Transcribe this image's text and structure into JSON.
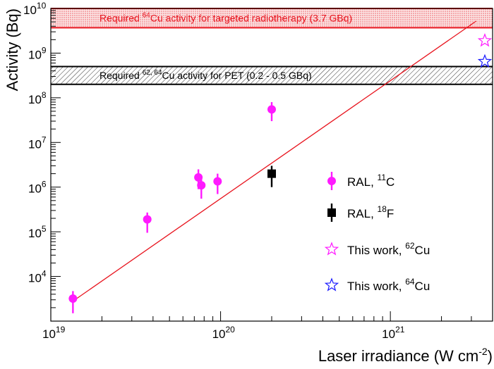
{
  "chart_data": {
    "type": "scatter",
    "xscale": "log",
    "yscale": "log",
    "xlim": [
      1e+19,
      4e+21
    ],
    "ylim": [
      1000,
      10000000000.0
    ],
    "xlabel_main": "Laser irradiance (W cm",
    "xlabel_sup": "-2",
    "xlabel_end": ")",
    "ylabel": "Activity (Bq)",
    "x_ticks": [
      {
        "value": 1e+19,
        "base": "10",
        "exp": "19"
      },
      {
        "value": 1e+20,
        "base": "10",
        "exp": "20"
      },
      {
        "value": 1e+21,
        "base": "10",
        "exp": "21"
      }
    ],
    "y_ticks": [
      {
        "value": 10000.0,
        "base": "10",
        "exp": "4"
      },
      {
        "value": 100000.0,
        "base": "10",
        "exp": "5"
      },
      {
        "value": 1000000.0,
        "base": "10",
        "exp": "6"
      },
      {
        "value": 10000000.0,
        "base": "10",
        "exp": "7"
      },
      {
        "value": 100000000.0,
        "base": "10",
        "exp": "8"
      },
      {
        "value": 1000000000.0,
        "base": "10",
        "exp": "9"
      },
      {
        "value": 10000000000.0,
        "base": "10",
        "exp": "10"
      }
    ],
    "bands": [
      {
        "ymin": 3700000000.0,
        "ymax": 10000000000.0,
        "color": "#e8141e",
        "text_a": "Required ",
        "text_sup": "64",
        "text_b": "Cu activity for targeted radiotherapy (3.7 GBq)"
      },
      {
        "ymin": 200000000.0,
        "ymax": 500000000.0,
        "color": "#000000",
        "text_a": "Required ",
        "text_sup": "62, 64",
        "text_b": "Cu activity for PET (0.2 - 0.5 GBq)"
      }
    ],
    "fit_line": {
      "x": [
        1.35e+19,
        3.2e+21
      ],
      "y": [
        2800,
        5200000000.0
      ],
      "color": "#e8141e"
    },
    "series": [
      {
        "name_a": "RAL, ",
        "name_sup": "11",
        "name_b": "C",
        "marker": "circle",
        "color": "#ff1aff",
        "points": [
          {
            "x": 1.35e+19,
            "y": 3200.0,
            "ylo": 1500.0,
            "yhi": 4700.0
          },
          {
            "x": 3.7e+19,
            "y": 190000.0,
            "ylo": 95000.0,
            "yhi": 270000.0
          },
          {
            "x": 7.4e+19,
            "y": 1650000.0,
            "ylo": 900000.0,
            "yhi": 2500000.0
          },
          {
            "x": 7.7e+19,
            "y": 1100000.0,
            "ylo": 550000.0,
            "yhi": 1700000.0
          },
          {
            "x": 9.6e+19,
            "y": 1350000.0,
            "ylo": 700000.0,
            "yhi": 2000000.0
          },
          {
            "x": 2e+20,
            "y": 55000000.0,
            "ylo": 30000000.0,
            "yhi": 80000000.0
          }
        ]
      },
      {
        "name_a": "RAL, ",
        "name_sup": "18",
        "name_b": "F",
        "marker": "square",
        "color": "#000000",
        "points": [
          {
            "x": 2e+20,
            "y": 2000000.0,
            "ylo": 1000000.0,
            "yhi": 3000000.0
          }
        ]
      },
      {
        "name_a": "This work, ",
        "name_sup": "62",
        "name_b": "Cu",
        "marker": "star",
        "color": "#ff1aff",
        "points": [
          {
            "x": 3.6e+21,
            "y": 1900000000.0
          }
        ]
      },
      {
        "name_a": "This work, ",
        "name_sup": "64",
        "name_b": "Cu",
        "marker": "star",
        "color": "#1a1aff",
        "points": [
          {
            "x": 3.6e+21,
            "y": 650000000.0
          }
        ]
      }
    ]
  }
}
